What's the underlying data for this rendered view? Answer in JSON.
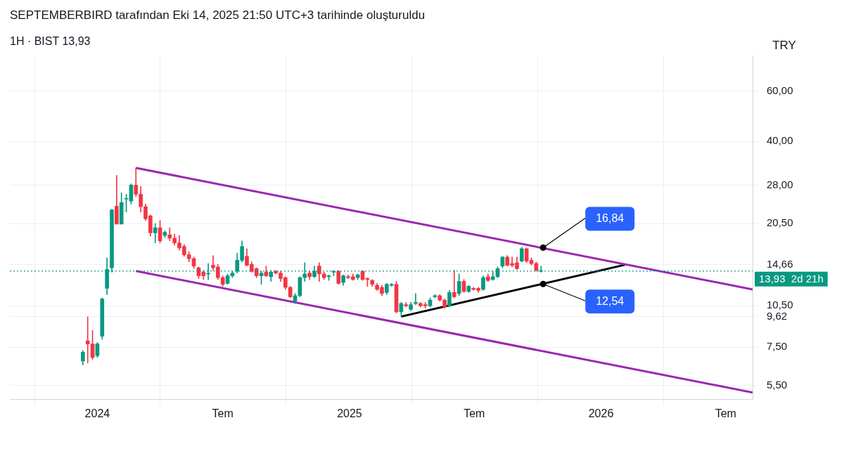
{
  "chart_data": {
    "type": "candlestick",
    "title": "SEPTEMBERBIRD tarafından Eki 14, 2025 21:50 UTC+3 tarihinde oluşturuldu",
    "subtitle": "1H · BIST 13,93",
    "ylabel": "TRY",
    "x": [
      "2023-12-11",
      "2023-12-18",
      "2023-12-25",
      "2024-01-01",
      "2024-01-08",
      "2024-01-15",
      "2024-01-22",
      "2024-01-29",
      "2024-02-05",
      "2024-02-12",
      "2024-02-19",
      "2024-02-26",
      "2024-03-04",
      "2024-03-11",
      "2024-03-18",
      "2024-03-25",
      "2024-04-01",
      "2024-04-08",
      "2024-04-15",
      "2024-04-22",
      "2024-04-29",
      "2024-05-06",
      "2024-05-13",
      "2024-05-20",
      "2024-05-27",
      "2024-06-03",
      "2024-06-10",
      "2024-06-17",
      "2024-06-24",
      "2024-07-01",
      "2024-07-08",
      "2024-07-15",
      "2024-07-22",
      "2024-07-29",
      "2024-08-05",
      "2024-08-12",
      "2024-08-19",
      "2024-08-26",
      "2024-09-02",
      "2024-09-09",
      "2024-09-16",
      "2024-09-23",
      "2024-09-30",
      "2024-10-07",
      "2024-10-14",
      "2024-10-21",
      "2024-10-28",
      "2024-11-04",
      "2024-11-11",
      "2024-11-18",
      "2024-11-25",
      "2024-12-02",
      "2024-12-09",
      "2024-12-16",
      "2024-12-23",
      "2024-12-30",
      "2025-01-06",
      "2025-01-13",
      "2025-01-20",
      "2025-01-27",
      "2025-02-03",
      "2025-02-10",
      "2025-02-17",
      "2025-02-24",
      "2025-03-03",
      "2025-03-10",
      "2025-03-17",
      "2025-03-24",
      "2025-03-31",
      "2025-04-07",
      "2025-04-14",
      "2025-04-21",
      "2025-04-28",
      "2025-05-05",
      "2025-05-12",
      "2025-05-19",
      "2025-05-26",
      "2025-06-02",
      "2025-06-09",
      "2025-06-16",
      "2025-06-23",
      "2025-06-30",
      "2025-07-07",
      "2025-07-14",
      "2025-07-21",
      "2025-07-28",
      "2025-08-04",
      "2025-08-11",
      "2025-08-18",
      "2025-08-25",
      "2025-09-01",
      "2025-09-08",
      "2025-09-15",
      "2025-09-22",
      "2025-09-29",
      "2025-10-06"
    ],
    "ohlc": [
      [
        6.7,
        7.3,
        6.5,
        7.2
      ],
      [
        7.9,
        9.6,
        6.6,
        7.7
      ],
      [
        7.7,
        8.6,
        6.8,
        6.9
      ],
      [
        7.0,
        7.8,
        6.9,
        7.7
      ],
      [
        8.2,
        11.2,
        8.0,
        11.1
      ],
      [
        12.1,
        15.5,
        11.5,
        14.1
      ],
      [
        14.3,
        23.0,
        13.8,
        22.9
      ],
      [
        23.6,
        30.3,
        20.4,
        20.4
      ],
      [
        20.4,
        26.3,
        20.4,
        24.3
      ],
      [
        25.0,
        26.0,
        22.5,
        25.1
      ],
      [
        24.6,
        28.3,
        24.0,
        28.0
      ],
      [
        28.0,
        32.2,
        25.5,
        26.0
      ],
      [
        26.0,
        27.7,
        22.5,
        23.5
      ],
      [
        23.5,
        24.0,
        21.0,
        21.3
      ],
      [
        21.8,
        22.0,
        18.5,
        19.0
      ],
      [
        19.0,
        20.5,
        17.5,
        19.8
      ],
      [
        19.8,
        21.0,
        17.5,
        17.8
      ],
      [
        18.6,
        19.3,
        18.3,
        19.1
      ],
      [
        18.7,
        19.8,
        17.8,
        18.2
      ],
      [
        18.2,
        18.8,
        17.2,
        17.5
      ],
      [
        17.5,
        18.6,
        16.5,
        16.8
      ],
      [
        17.0,
        17.3,
        15.7,
        15.9
      ],
      [
        15.9,
        16.3,
        15.0,
        15.4
      ],
      [
        15.4,
        15.6,
        14.2,
        14.5
      ],
      [
        14.3,
        14.4,
        13.1,
        13.4
      ],
      [
        13.8,
        14.0,
        13.0,
        13.4
      ],
      [
        13.6,
        14.8,
        13.0,
        13.6
      ],
      [
        14.6,
        15.8,
        14.0,
        14.3
      ],
      [
        14.4,
        14.7,
        13.0,
        13.2
      ],
      [
        13.2,
        13.4,
        12.3,
        12.5
      ],
      [
        12.6,
        13.6,
        12.5,
        13.4
      ],
      [
        13.4,
        13.9,
        13.2,
        13.7
      ],
      [
        13.9,
        16.1,
        13.7,
        15.2
      ],
      [
        15.2,
        17.8,
        15.0,
        17.0
      ],
      [
        15.7,
        16.7,
        14.5,
        14.6
      ],
      [
        14.7,
        15.0,
        13.8,
        13.9
      ],
      [
        14.2,
        14.3,
        13.2,
        13.4
      ],
      [
        13.4,
        13.9,
        12.5,
        13.7
      ],
      [
        13.8,
        14.5,
        13.3,
        13.4
      ],
      [
        13.3,
        14.0,
        12.8,
        13.8
      ],
      [
        13.9,
        14.0,
        13.6,
        13.7
      ],
      [
        13.7,
        13.9,
        12.8,
        13.1
      ],
      [
        13.2,
        13.3,
        12.0,
        12.2
      ],
      [
        12.2,
        12.3,
        11.2,
        11.3
      ],
      [
        10.9,
        11.6,
        10.7,
        11.4
      ],
      [
        11.4,
        13.3,
        11.3,
        13.2
      ],
      [
        13.2,
        14.9,
        12.8,
        13.6
      ],
      [
        13.7,
        13.9,
        13.0,
        13.3
      ],
      [
        13.3,
        14.5,
        13.2,
        13.9
      ],
      [
        14.5,
        14.9,
        12.8,
        13.6
      ],
      [
        13.6,
        13.8,
        13.0,
        13.2
      ],
      [
        13.3,
        13.5,
        12.9,
        13.4
      ],
      [
        13.8,
        14.0,
        13.4,
        13.9
      ],
      [
        13.9,
        14.0,
        12.5,
        12.6
      ],
      [
        12.7,
        13.5,
        12.4,
        13.4
      ],
      [
        13.3,
        13.5,
        13.1,
        13.2
      ],
      [
        13.3,
        13.6,
        12.9,
        13.0
      ],
      [
        13.2,
        13.6,
        13.0,
        13.5
      ],
      [
        13.9,
        14.0,
        12.9,
        13.0
      ],
      [
        13.1,
        13.2,
        12.3,
        13.0
      ],
      [
        12.9,
        13.0,
        12.3,
        12.5
      ],
      [
        12.4,
        12.6,
        11.9,
        12.0
      ],
      [
        12.2,
        12.4,
        11.4,
        11.6
      ],
      [
        11.7,
        12.6,
        11.5,
        12.5
      ],
      [
        12.4,
        12.6,
        12.3,
        12.5
      ],
      [
        12.5,
        12.8,
        9.9,
        10.0
      ],
      [
        10.0,
        10.8,
        9.6,
        10.7
      ],
      [
        10.6,
        10.8,
        10.4,
        10.5
      ],
      [
        10.2,
        10.8,
        10.1,
        10.6
      ],
      [
        10.7,
        11.6,
        10.6,
        10.8
      ],
      [
        10.7,
        10.8,
        10.4,
        10.5
      ],
      [
        10.6,
        10.8,
        10.3,
        10.5
      ],
      [
        10.5,
        11.2,
        10.4,
        11.0
      ],
      [
        11.3,
        11.5,
        11.2,
        11.4
      ],
      [
        11.4,
        11.5,
        10.9,
        11.0
      ],
      [
        11.0,
        11.1,
        10.3,
        10.4
      ],
      [
        10.5,
        11.9,
        10.4,
        11.7
      ],
      [
        11.7,
        14.0,
        11.2,
        11.3
      ],
      [
        11.6,
        13.6,
        11.4,
        12.8
      ],
      [
        12.8,
        13.0,
        11.7,
        11.8
      ],
      [
        11.8,
        12.4,
        11.7,
        12.3
      ],
      [
        12.1,
        12.2,
        11.9,
        12.0
      ],
      [
        12.1,
        12.2,
        11.7,
        11.9
      ],
      [
        12.0,
        13.4,
        11.9,
        13.2
      ],
      [
        13.3,
        13.6,
        12.8,
        12.9
      ],
      [
        13.0,
        13.9,
        12.9,
        13.3
      ],
      [
        13.3,
        14.4,
        13.2,
        14.2
      ],
      [
        14.5,
        15.7,
        14.3,
        15.6
      ],
      [
        15.6,
        15.8,
        14.5,
        14.6
      ],
      [
        14.8,
        15.6,
        14.4,
        14.6
      ],
      [
        14.9,
        15.6,
        14.1,
        14.2
      ],
      [
        15.1,
        16.9,
        15.0,
        16.7
      ],
      [
        16.7,
        16.8,
        14.9,
        15.1
      ],
      [
        15.2,
        15.5,
        14.6,
        14.8
      ],
      [
        14.8,
        15.0,
        13.9,
        14.0
      ],
      [
        13.9,
        14.5,
        13.8,
        13.93
      ]
    ],
    "colors": [
      "#089981",
      "#f23645",
      "#f23645",
      "#089981",
      "#089981",
      "#089981",
      "#089981",
      "#f23645",
      "#089981",
      "#089981",
      "#089981",
      "#f23645",
      "#f23645",
      "#f23645",
      "#f23645",
      "#089981",
      "#f23645",
      "#089981",
      "#f23645",
      "#f23645",
      "#f23645",
      "#f23645",
      "#f23645",
      "#f23645",
      "#f23645",
      "#f23645",
      "#089981",
      "#f23645",
      "#f23645",
      "#f23645",
      "#089981",
      "#089981",
      "#089981",
      "#089981",
      "#f23645",
      "#f23645",
      "#f23645",
      "#089981",
      "#f23645",
      "#089981",
      "#f23645",
      "#f23645",
      "#f23645",
      "#f23645",
      "#089981",
      "#089981",
      "#089981",
      "#f23645",
      "#089981",
      "#f23645",
      "#f23645",
      "#089981",
      "#089981",
      "#f23645",
      "#089981",
      "#f23645",
      "#f23645",
      "#089981",
      "#f23645",
      "#f23645",
      "#f23645",
      "#f23645",
      "#f23645",
      "#089981",
      "#089981",
      "#f23645",
      "#089981",
      "#f23645",
      "#089981",
      "#089981",
      "#f23645",
      "#f23645",
      "#089981",
      "#089981",
      "#f23645",
      "#f23645",
      "#089981",
      "#f23645",
      "#089981",
      "#f23645",
      "#089981",
      "#f23645",
      "#f23645",
      "#089981",
      "#f23645",
      "#089981",
      "#089981",
      "#089981",
      "#f23645",
      "#f23645",
      "#f23645",
      "#089981",
      "#f23645",
      "#f23645",
      "#f23645",
      "#089981"
    ],
    "series": [
      {
        "type": "line",
        "color": "#9c27b0",
        "x": [
          "2024-02-26",
          "2026-08-09"
        ],
        "values": [
          32.2,
          12.0
        ]
      },
      {
        "type": "line",
        "color": "#9c27b0",
        "x": [
          "2024-02-26",
          "2026-08-09"
        ],
        "values": [
          13.93,
          5.19
        ]
      },
      {
        "type": "line",
        "color": "#000000",
        "x": [
          "2025-03-17",
          "2026-02-05"
        ],
        "values": [
          9.62,
          14.66
        ]
      }
    ],
    "xlim": [
      "2023-08-27",
      "2026-08-09"
    ],
    "xticks": [
      {
        "value": "2024-01-01",
        "label": "2024"
      },
      {
        "value": "2024-07-01",
        "label": "Tem"
      },
      {
        "value": "2025-01-01",
        "label": "2025"
      },
      {
        "value": "2025-07-01",
        "label": "Tem"
      },
      {
        "value": "2026-01-01",
        "label": "2026"
      },
      {
        "value": "2026-07-01",
        "label": "Tem"
      }
    ],
    "ylim": [
      4.9,
      80
    ],
    "yticks": [
      {
        "value": 5.5,
        "label": "5,50"
      },
      {
        "value": 7.5,
        "label": "7,50"
      },
      {
        "value": 9.62,
        "label": "9,62"
      },
      {
        "value": 10.5,
        "label": "10,50"
      },
      {
        "value": 14.66,
        "label": "14,66"
      },
      {
        "value": 20.5,
        "label": "20,50"
      },
      {
        "value": 28,
        "label": "28,00"
      },
      {
        "value": 40,
        "label": "40,00"
      },
      {
        "value": 60,
        "label": "60,00"
      }
    ],
    "log": "y",
    "grid": true,
    "legend": false,
    "marker": "none",
    "ref_lines": [
      {
        "axis": "y",
        "value": 13.93,
        "label": "13,93\n2d 21h",
        "color": "#089981",
        "line_style": "dotted"
      }
    ],
    "annotations": [
      {
        "text": "16,84",
        "x": "2025-10-09",
        "y": 16.84
      },
      {
        "text": "12,54",
        "x": "2025-10-09",
        "y": 12.54
      }
    ]
  }
}
